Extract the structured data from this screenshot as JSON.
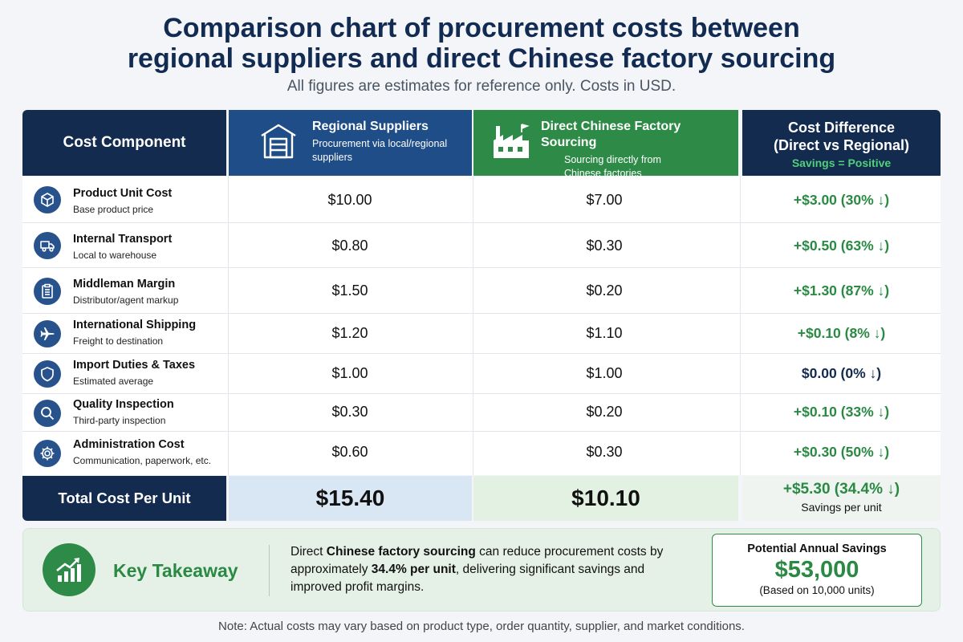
{
  "header": {
    "title_line1": "Comparison chart of procurement costs between",
    "title_line2": "regional suppliers and direct Chinese factory sourcing",
    "subtitle": "All figures are estimates for reference only. Costs in USD."
  },
  "columns": {
    "component": "Cost Component",
    "regional": {
      "title": "Regional Suppliers",
      "sub1": "Procurement via local/regional",
      "sub2": "suppliers",
      "icon": "warehouse-icon"
    },
    "direct": {
      "title": "Direct Chinese Factory Sourcing",
      "sub1": "Sourcing directly from",
      "sub2": "Chinese factories",
      "icon": "factory-icon"
    },
    "difference": {
      "line1": "Cost Difference",
      "line2": "(Direct vs Regional)",
      "note": "Savings = Positive"
    }
  },
  "rows": [
    {
      "name": "Product Unit Cost",
      "sub": "Base product price",
      "icon": "box-icon",
      "regional": "$10.00",
      "direct": "$7.00",
      "diff": "+$3.00 (30% ↓)"
    },
    {
      "name": "Internal Transport",
      "sub": "Local to warehouse",
      "icon": "truck-icon",
      "regional": "$0.80",
      "direct": "$0.30",
      "diff": "+$0.50 (63% ↓)"
    },
    {
      "name": "Middleman Margin",
      "sub": "Distributor/agent markup",
      "icon": "clipboard-icon",
      "regional": "$1.50",
      "direct": "$0.20",
      "diff": "+$1.30 (87% ↓)"
    },
    {
      "name": "International Shipping",
      "sub": "Freight to destination",
      "icon": "airplane-icon",
      "regional": "$1.20",
      "direct": "$1.10",
      "diff": "+$0.10 (8% ↓)"
    },
    {
      "name": "Import Duties & Taxes",
      "sub": "Estimated average",
      "icon": "shield-icon",
      "regional": "$1.00",
      "direct": "$1.00",
      "diff": "$0.00 (0% ↓)"
    },
    {
      "name": "Quality Inspection",
      "sub": "Third-party inspection",
      "icon": "magnifier-icon",
      "regional": "$0.30",
      "direct": "$0.20",
      "diff": "+$0.10 (33% ↓)"
    },
    {
      "name": "Administration Cost",
      "sub": "Communication, paperwork, etc.",
      "icon": "gear-icon",
      "regional": "$0.60",
      "direct": "$0.30",
      "diff": "+$0.30 (50% ↓)"
    }
  ],
  "total": {
    "label": "Total Cost Per Unit",
    "regional": "$15.40",
    "direct": "$10.10",
    "diff": "+$5.30 (34.4% ↓)",
    "diff_sub": "Savings per unit"
  },
  "takeaway": {
    "title": "Key Takeaway",
    "t1": "Direct ",
    "t2": "Chinese factory sourcing",
    "t3": " can reduce procurement costs by approximately ",
    "t4": "34.4% per unit",
    "t5": ", delivering significant savings and improved profit margins.",
    "box_title": "Potential Annual Savings",
    "box_value": "$53,000",
    "box_sub": "(Based on 10,000 units)",
    "icon": "growth-chart-icon"
  },
  "note": "Note: Actual costs may vary based on product type, order quantity, supplier, and market conditions.",
  "colors": {
    "navy": "#132b4f",
    "blue": "#1f4d87",
    "green": "#2e8b47",
    "savings_green": "#2a8a43"
  },
  "chart_data": {
    "type": "table",
    "title": "Comparison chart of procurement costs between regional suppliers and direct Chinese factory sourcing",
    "columns": [
      "Cost Component",
      "Regional Suppliers",
      "Direct Chinese Factory Sourcing",
      "Cost Difference (Direct vs Regional)"
    ],
    "categories": [
      "Product Unit Cost",
      "Internal Transport",
      "Middleman Margin",
      "International Shipping",
      "Import Duties & Taxes",
      "Quality Inspection",
      "Administration Cost"
    ],
    "series": [
      {
        "name": "Regional Suppliers",
        "values": [
          10.0,
          0.8,
          1.5,
          1.2,
          1.0,
          0.3,
          0.6
        ]
      },
      {
        "name": "Direct Chinese Factory Sourcing",
        "values": [
          7.0,
          0.3,
          0.2,
          1.1,
          1.0,
          0.2,
          0.3
        ]
      },
      {
        "name": "Cost Difference (Direct vs Regional)",
        "values": [
          3.0,
          0.5,
          1.3,
          0.1,
          0.0,
          0.1,
          0.3
        ]
      }
    ],
    "percent_reduction": [
      30,
      63,
      87,
      8,
      0,
      33,
      50
    ],
    "totals": {
      "regional": 15.4,
      "direct": 10.1,
      "difference": 5.3,
      "percent": 34.4
    },
    "annual_savings": 53000,
    "annual_units": 10000
  }
}
